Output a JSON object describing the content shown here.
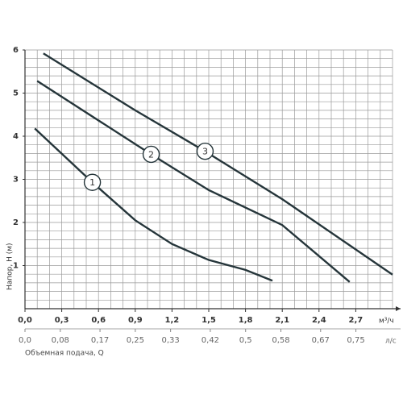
{
  "chart_data": {
    "type": "line",
    "y_label": "Напор, Н (м)",
    "x_unit": "м³/ч",
    "x2_unit": "л/с",
    "x2_label": "Объемная подача, Q",
    "xlim": [
      0,
      3.0
    ],
    "ylim": [
      0,
      6
    ],
    "xticks": [
      {
        "value": 0,
        "label": "0,0"
      },
      {
        "value": 0.3,
        "label": "0,3"
      },
      {
        "value": 0.6,
        "label": "0,6"
      },
      {
        "value": 0.9,
        "label": "0,9"
      },
      {
        "value": 1.2,
        "label": "1,2"
      },
      {
        "value": 1.5,
        "label": "1,5"
      },
      {
        "value": 1.8,
        "label": "1,8"
      },
      {
        "value": 2.1,
        "label": "2,1"
      },
      {
        "value": 2.4,
        "label": "2,4"
      },
      {
        "value": 2.7,
        "label": "2,7"
      }
    ],
    "yticks": [
      1,
      2,
      3,
      4,
      5,
      6
    ],
    "x2lim": [
      0,
      0.833
    ],
    "x2ticks": [
      {
        "value": 0,
        "label": "0,0"
      },
      {
        "value": 0.08,
        "label": "0,08"
      },
      {
        "value": 0.17,
        "label": "0,17"
      },
      {
        "value": 0.25,
        "label": "0,25"
      },
      {
        "value": 0.33,
        "label": "0,33"
      },
      {
        "value": 0.42,
        "label": "0,42"
      },
      {
        "value": 0.5,
        "label": "0,5"
      },
      {
        "value": 0.58,
        "label": "0,58"
      },
      {
        "value": 0.67,
        "label": "0,67"
      },
      {
        "value": 0.75,
        "label": "0,75"
      }
    ],
    "grid": {
      "x_step": 0.1,
      "y_step": 0.2
    },
    "series": [
      {
        "name": "1",
        "color": "#25353a",
        "x": [
          0.08,
          0.55,
          0.9,
          1.2,
          1.5,
          1.8,
          2.02
        ],
        "values": [
          4.18,
          2.93,
          2.05,
          1.5,
          1.13,
          0.9,
          0.65
        ]
      },
      {
        "name": "2",
        "color": "#25353a",
        "x": [
          0.1,
          1.03,
          1.5,
          2.1,
          2.65
        ],
        "values": [
          5.28,
          3.58,
          2.75,
          1.94,
          0.62
        ]
      },
      {
        "name": "3",
        "color": "#25353a",
        "x": [
          0.15,
          0.9,
          1.47,
          2.1,
          3.0
        ],
        "values": [
          5.92,
          4.6,
          3.65,
          2.54,
          0.79
        ]
      }
    ]
  }
}
